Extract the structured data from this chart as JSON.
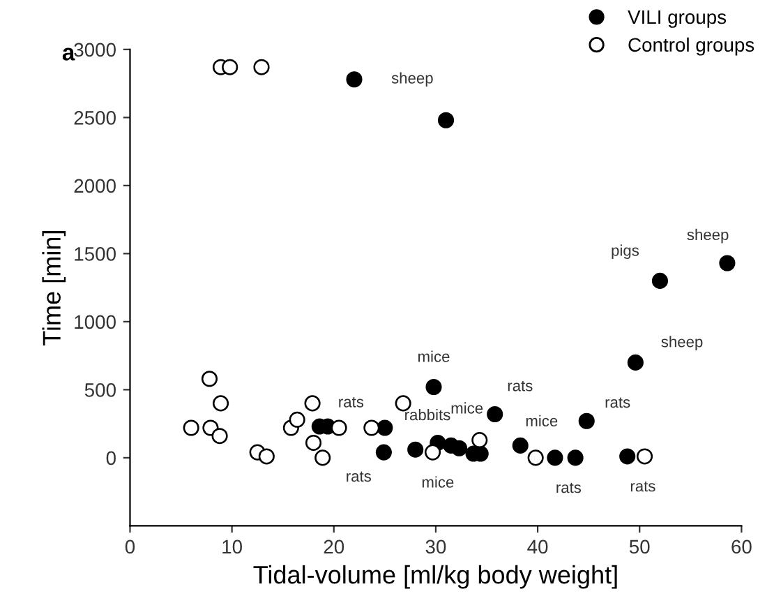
{
  "chart_data": {
    "type": "scatter",
    "xlabel": "Tidal-volume [ml/kg body weight]",
    "ylabel": "Time [min]",
    "xlim": [
      0,
      60
    ],
    "ylim": [
      -500,
      3000
    ],
    "xticks": [
      0,
      10,
      20,
      30,
      40,
      50,
      60
    ],
    "yticks": [
      0,
      500,
      1000,
      1500,
      2000,
      2500,
      3000
    ],
    "grid": false,
    "legend": "top right",
    "marker": "circle",
    "series": [
      {
        "name": "VILI groups",
        "color": "#000000",
        "x": [
          22,
          31,
          52,
          58.6,
          49.6,
          29.8,
          35.8,
          44.8,
          28,
          30.2,
          31.5,
          32.3,
          33.7,
          34.4,
          38.3,
          41.7,
          43.7,
          48.8,
          18.6,
          19.4,
          25,
          24.9
        ],
        "values": [
          2780,
          2480,
          1300,
          1430,
          700,
          520,
          320,
          270,
          60,
          110,
          90,
          70,
          30,
          30,
          90,
          0,
          0,
          10,
          230,
          230,
          220,
          40
        ]
      },
      {
        "name": "Control groups",
        "color": "#000000",
        "x": [
          7.8,
          6,
          7.9,
          8.9,
          8.8,
          12.5,
          13.4,
          15.8,
          16.4,
          17.9,
          18,
          18.9,
          20.5,
          23.7,
          26.8,
          29.7,
          34.3,
          39.8,
          50.5,
          8.9,
          9.8,
          12.9
        ],
        "values": [
          580,
          220,
          220,
          400,
          160,
          40,
          10,
          220,
          280,
          400,
          110,
          0,
          220,
          220,
          400,
          40,
          130,
          0,
          10,
          2870,
          2870,
          2870
        ]
      }
    ],
    "annotations": [
      "a",
      {
        "text": "sheep",
        "x": 22,
        "y": 2780
      },
      {
        "text": "sheep",
        "x": 58.6,
        "y": 1430
      },
      {
        "text": "pigs",
        "x": 52,
        "y": 1300
      },
      {
        "text": "sheep",
        "x": 49.6,
        "y": 700
      },
      {
        "text": "mice",
        "x": 29.8,
        "y": 520
      },
      {
        "text": "rats",
        "x": 35.8,
        "y": 320
      },
      {
        "text": "rats",
        "x": 44.8,
        "y": 270
      },
      {
        "text": "rats",
        "x": 19.4,
        "y": 230
      },
      {
        "text": "rabbits",
        "x": 25,
        "y": 220
      },
      {
        "text": "rats",
        "x": 24.9,
        "y": 40
      },
      {
        "text": "mice",
        "x": 32.3,
        "y": 70
      },
      {
        "text": "mice",
        "x": 30.2,
        "y": 110
      },
      {
        "text": "mice",
        "x": 38.3,
        "y": 90
      },
      {
        "text": "rats",
        "x": 41.7,
        "y": 0
      },
      {
        "text": "rats",
        "x": 48.8,
        "y": 10
      }
    ]
  }
}
